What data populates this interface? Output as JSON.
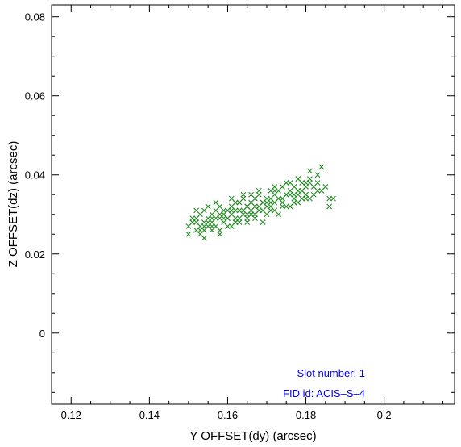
{
  "chart_data": {
    "type": "scatter",
    "xlabel": "Y OFFSET(dy) (arcsec)",
    "ylabel": "Z OFFSET(dz) (arcsec)",
    "xlim": [
      0.115,
      0.218
    ],
    "ylim": [
      -0.018,
      0.083
    ],
    "x_ticks": [
      0.12,
      0.14,
      0.16,
      0.18,
      0.2
    ],
    "x_tick_labels": [
      "0.12",
      "0.14",
      "0.16",
      "0.18",
      "0.2"
    ],
    "y_ticks": [
      0,
      0.02,
      0.04,
      0.06,
      0.08
    ],
    "y_tick_labels": [
      "0",
      "0.02",
      "0.04",
      "0.06",
      "0.08"
    ],
    "grid": false,
    "marker": "x",
    "marker_color": "#228B22",
    "annotation_color": "#0000ff",
    "annotations": [
      "Slot number: 1",
      "FID id: ACIS–S–4"
    ],
    "series": [
      {
        "x": [
          0.15,
          0.151,
          0.152,
          0.152,
          0.153,
          0.153,
          0.154,
          0.154,
          0.155,
          0.155,
          0.156,
          0.156,
          0.157,
          0.157,
          0.158,
          0.158,
          0.159,
          0.159,
          0.16,
          0.16,
          0.161,
          0.161,
          0.162,
          0.162,
          0.163,
          0.163,
          0.164,
          0.164,
          0.165,
          0.165,
          0.166,
          0.166,
          0.167,
          0.167,
          0.168,
          0.168,
          0.169,
          0.169,
          0.17,
          0.17,
          0.171,
          0.171,
          0.172,
          0.172,
          0.173,
          0.173,
          0.174,
          0.174,
          0.175,
          0.175,
          0.176,
          0.176,
          0.177,
          0.177,
          0.178,
          0.178,
          0.179,
          0.179,
          0.18,
          0.18,
          0.181,
          0.182,
          0.183,
          0.184,
          0.185,
          0.186,
          0.15,
          0.151,
          0.152,
          0.153,
          0.154,
          0.155,
          0.156,
          0.157,
          0.158,
          0.159,
          0.16,
          0.161,
          0.162,
          0.163,
          0.164,
          0.165,
          0.166,
          0.167,
          0.168,
          0.169,
          0.17,
          0.171,
          0.172,
          0.173,
          0.174,
          0.175,
          0.176,
          0.177,
          0.178,
          0.179,
          0.18,
          0.181,
          0.182,
          0.183,
          0.152,
          0.154,
          0.156,
          0.158,
          0.16,
          0.162,
          0.164,
          0.166,
          0.168,
          0.17,
          0.172,
          0.174,
          0.176,
          0.178,
          0.18,
          0.155,
          0.157,
          0.159,
          0.161,
          0.163,
          0.165,
          0.167,
          0.169,
          0.171,
          0.173,
          0.175,
          0.177,
          0.179,
          0.181,
          0.153,
          0.156,
          0.159,
          0.162,
          0.165,
          0.168,
          0.171,
          0.174,
          0.177,
          0.18,
          0.183,
          0.184,
          0.154,
          0.158,
          0.161,
          0.166,
          0.172,
          0.175,
          0.178,
          0.181,
          0.187,
          0.186
        ],
        "y": [
          0.027,
          0.028,
          0.026,
          0.029,
          0.027,
          0.03,
          0.028,
          0.026,
          0.029,
          0.027,
          0.03,
          0.028,
          0.031,
          0.027,
          0.029,
          0.032,
          0.028,
          0.03,
          0.031,
          0.029,
          0.032,
          0.03,
          0.028,
          0.031,
          0.033,
          0.029,
          0.031,
          0.034,
          0.03,
          0.032,
          0.033,
          0.031,
          0.029,
          0.034,
          0.032,
          0.035,
          0.031,
          0.033,
          0.034,
          0.032,
          0.036,
          0.033,
          0.035,
          0.031,
          0.034,
          0.036,
          0.033,
          0.037,
          0.035,
          0.032,
          0.036,
          0.038,
          0.034,
          0.037,
          0.035,
          0.039,
          0.036,
          0.038,
          0.037,
          0.035,
          0.039,
          0.037,
          0.038,
          0.036,
          0.037,
          0.034,
          0.025,
          0.029,
          0.031,
          0.025,
          0.031,
          0.032,
          0.026,
          0.033,
          0.026,
          0.031,
          0.027,
          0.034,
          0.033,
          0.028,
          0.035,
          0.028,
          0.035,
          0.03,
          0.036,
          0.028,
          0.03,
          0.031,
          0.037,
          0.03,
          0.032,
          0.038,
          0.032,
          0.033,
          0.033,
          0.034,
          0.034,
          0.034,
          0.035,
          0.04,
          0.028,
          0.027,
          0.029,
          0.03,
          0.029,
          0.029,
          0.03,
          0.03,
          0.031,
          0.033,
          0.033,
          0.034,
          0.035,
          0.036,
          0.038,
          0.028,
          0.029,
          0.03,
          0.031,
          0.031,
          0.032,
          0.032,
          0.033,
          0.034,
          0.034,
          0.035,
          0.035,
          0.036,
          0.038,
          0.026,
          0.027,
          0.029,
          0.028,
          0.029,
          0.031,
          0.032,
          0.034,
          0.034,
          0.035,
          0.036,
          0.042,
          0.024,
          0.025,
          0.027,
          0.03,
          0.036,
          0.038,
          0.039,
          0.041,
          0.034,
          0.032
        ]
      }
    ]
  }
}
